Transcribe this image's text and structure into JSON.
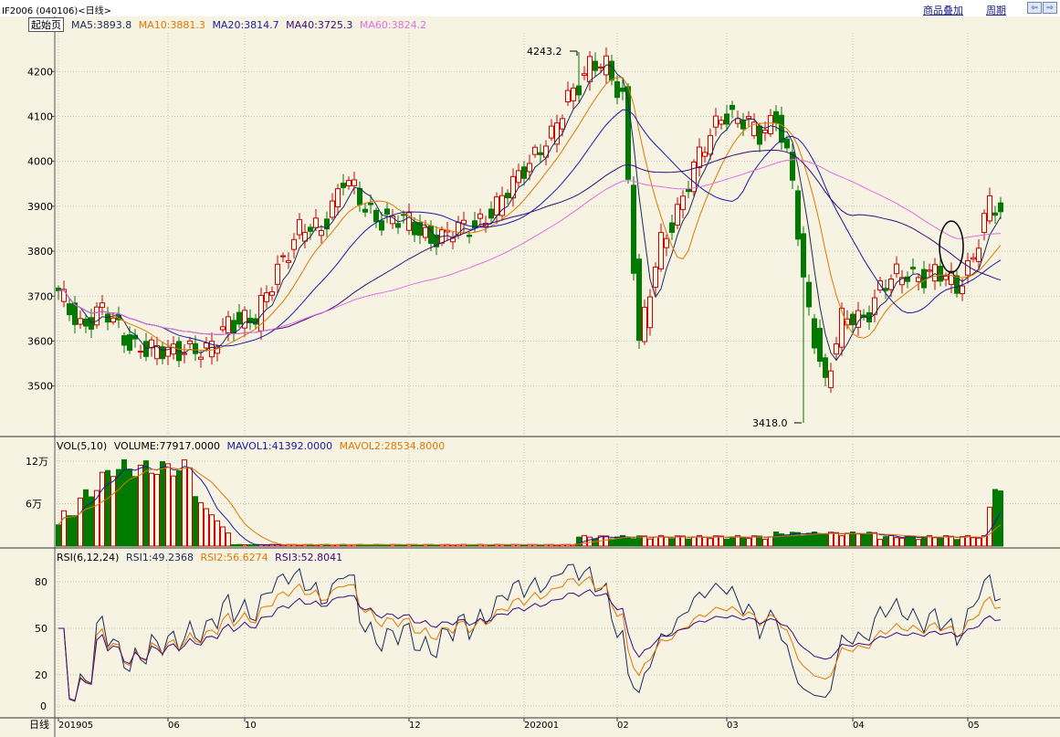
{
  "header": {
    "symbol": "IF2006 (040106)<日线>",
    "overlay_link": "商品叠加",
    "period_link": "周期",
    "home_button": "起始页",
    "nav_left": "⇦",
    "nav_right": "⇨"
  },
  "colors": {
    "up": "#cc0000",
    "down": "#007a00",
    "ma5": "#1a2a5a",
    "ma10": "#e07800",
    "ma20": "#1a1aa8",
    "ma40": "#3a0a7a",
    "ma60": "#e070e0"
  },
  "chart_data": [
    {
      "type": "candlestick",
      "title": "",
      "legend": [
        {
          "label": "MA5:3893.8",
          "color": "#1a2a5a"
        },
        {
          "label": "MA10:3881.3",
          "color": "#e07800"
        },
        {
          "label": "MA20:3814.7",
          "color": "#1a1aa8"
        },
        {
          "label": "MA40:3725.3",
          "color": "#3a0a7a"
        },
        {
          "label": "MA60:3824.2",
          "color": "#e070e0"
        }
      ],
      "y_ticks": [
        3500,
        3600,
        3700,
        3800,
        3900,
        4000,
        4100,
        4200
      ],
      "ylim": [
        3418,
        4280
      ],
      "x_tick_labels": [
        {
          "label": "201905",
          "bar": 0
        },
        {
          "label": "06",
          "bar": 20
        },
        {
          "label": "10",
          "bar": 34
        },
        {
          "label": "12",
          "bar": 64
        },
        {
          "label": "202001",
          "bar": 85
        },
        {
          "label": "02",
          "bar": 102
        },
        {
          "label": "03",
          "bar": 122
        },
        {
          "label": "04",
          "bar": 145
        },
        {
          "label": "05",
          "bar": 166
        }
      ],
      "annotations": [
        {
          "text": "4243.2",
          "value": 4243.2,
          "bar": 95
        },
        {
          "text": "3418.0",
          "value": 3418.0,
          "bar": 136
        }
      ],
      "grid": true
    },
    {
      "type": "bar",
      "legend": [
        {
          "label": "VOL(5,10)",
          "color": "#000000"
        },
        {
          "label": "VOLUME:77917.0000",
          "color": "#000000"
        },
        {
          "label": "MAVOL1:41392.0000",
          "color": "#1a1aa8"
        },
        {
          "label": "MAVOL2:28534.8000",
          "color": "#e07800"
        }
      ],
      "y_ticks": [
        {
          "label": "12万",
          "value": 120000
        },
        {
          "label": "6万",
          "value": 60000
        }
      ],
      "ylim": [
        0,
        140000
      ]
    },
    {
      "type": "line",
      "legend": [
        {
          "label": "RSI(6,12,24)",
          "color": "#000000"
        },
        {
          "label": "RSI1:49.2368",
          "color": "#1a2a5a"
        },
        {
          "label": "RSI2:56.6274",
          "color": "#e07800"
        },
        {
          "label": "RSI3:52.8041",
          "color": "#3a0a7a"
        }
      ],
      "y_ticks": [
        80,
        50,
        20,
        0
      ],
      "ylim": [
        0,
        100
      ]
    }
  ],
  "footer": {
    "period_label": "日线"
  }
}
